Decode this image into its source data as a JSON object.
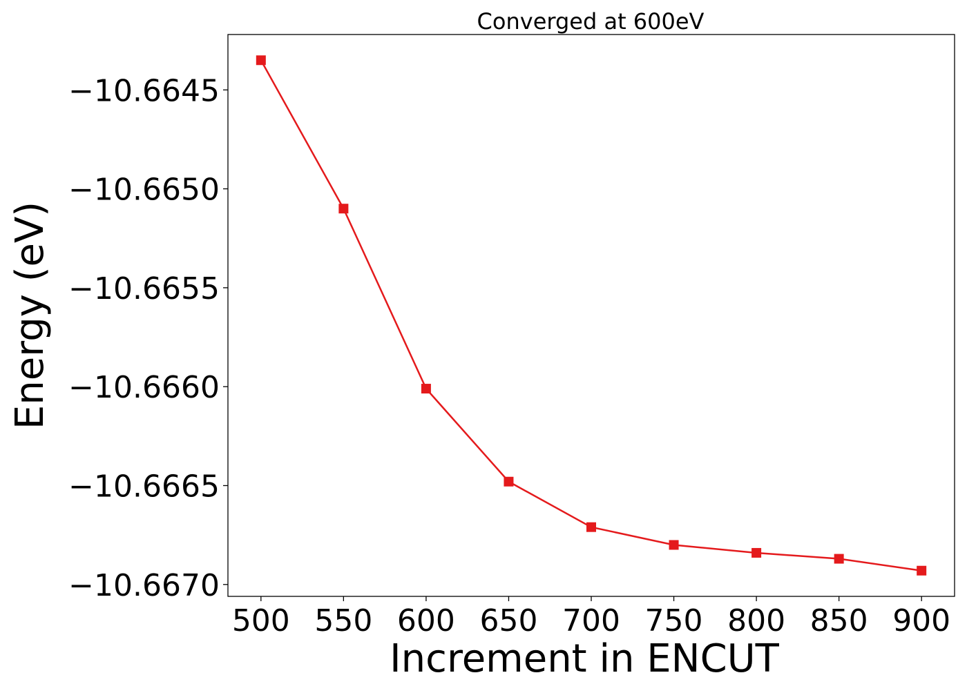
{
  "chart_data": {
    "type": "line",
    "title": "Converged at 600eV",
    "xlabel": "Increment in ENCUT",
    "ylabel": "Energy (eV)",
    "x": [
      500,
      550,
      600,
      650,
      700,
      750,
      800,
      850,
      900
    ],
    "series": [
      {
        "values": [
          -10.66435,
          -10.6651,
          -10.66601,
          -10.66648,
          -10.66671,
          -10.6668,
          -10.66684,
          -10.66687,
          -10.66693
        ],
        "color": "#e41a1c",
        "marker": "square"
      }
    ],
    "xticks": [
      500,
      550,
      600,
      650,
      700,
      750,
      800,
      850,
      900
    ],
    "xtick_labels": [
      "500",
      "550",
      "600",
      "650",
      "700",
      "750",
      "800",
      "850",
      "900"
    ],
    "yticks": [
      -10.6645,
      -10.665,
      -10.6655,
      -10.666,
      -10.6665,
      -10.667
    ],
    "ytick_labels": [
      "−10.6645",
      "−10.6650",
      "−10.6655",
      "−10.6660",
      "−10.6665",
      "−10.6670"
    ],
    "xlim": [
      480,
      920
    ],
    "ylim": [
      -10.66706,
      -10.66422
    ],
    "grid": false,
    "legend": "none"
  }
}
